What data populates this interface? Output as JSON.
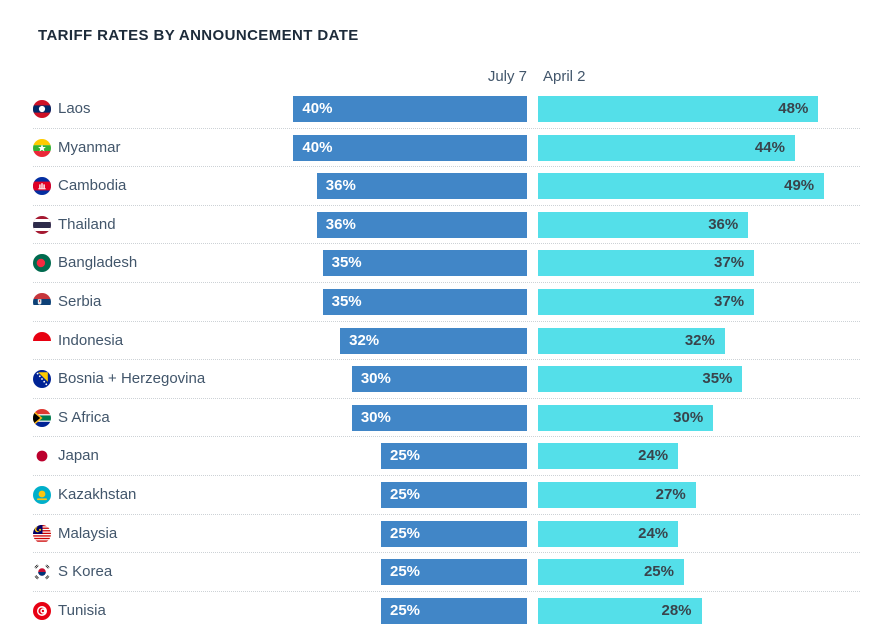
{
  "title": "TARIFF RATES BY ANNOUNCEMENT DATE",
  "columns": {
    "left_header": "July 7",
    "right_header": "April 2"
  },
  "colors": {
    "left_bar": "#4186c7",
    "right_bar": "#54dfe9",
    "left_bar_label": "#ffffff",
    "right_bar_label": "#39444c",
    "title_text": "#1d2b3a",
    "row_label_text": "#42566b",
    "header_text": "#42566b",
    "separator": "#cdd2d6"
  },
  "chart_data": {
    "type": "bar",
    "orientation": "horizontal",
    "title": "TARIFF RATES BY ANNOUNCEMENT DATE",
    "categories": [
      "Laos",
      "Myanmar",
      "Cambodia",
      "Thailand",
      "Bangladesh",
      "Serbia",
      "Indonesia",
      "Bosnia + Herzegovina",
      "S Africa",
      "Japan",
      "Kazakhstan",
      "Malaysia",
      "S Korea",
      "Tunisia"
    ],
    "flag_icons": [
      "laos-flag-icon",
      "myanmar-flag-icon",
      "cambodia-flag-icon",
      "thailand-flag-icon",
      "bangladesh-flag-icon",
      "serbia-flag-icon",
      "indonesia-flag-icon",
      "bosnia-herzegovina-flag-icon",
      "s-africa-flag-icon",
      "japan-flag-icon",
      "kazakhstan-flag-icon",
      "malaysia-flag-icon",
      "s-korea-flag-icon",
      "tunisia-flag-icon"
    ],
    "series": [
      {
        "name": "July 7",
        "values": [
          40,
          40,
          36,
          36,
          35,
          35,
          32,
          30,
          30,
          25,
          25,
          25,
          25,
          25
        ]
      },
      {
        "name": "April 2",
        "values": [
          48,
          44,
          49,
          36,
          37,
          37,
          32,
          35,
          30,
          24,
          27,
          24,
          25,
          28
        ]
      }
    ],
    "value_suffix": "%",
    "value_labels": "inside bars",
    "xlim": [
      0,
      49
    ],
    "grid": false,
    "legend_position": "column-headers"
  }
}
